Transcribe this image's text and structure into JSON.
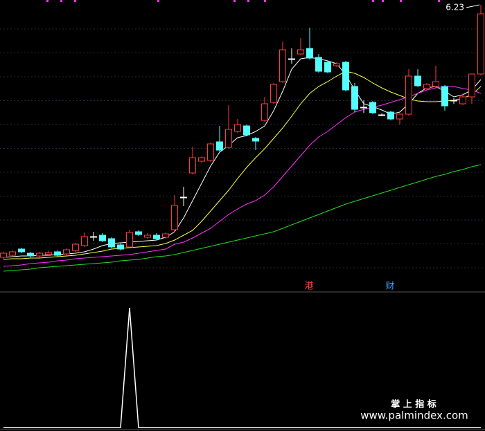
{
  "chart_data": [
    {
      "type": "candlestick",
      "ylim": [
        2.3,
        6.3
      ],
      "up_color": "#ff3c3c",
      "down_color": "#54ffff",
      "flat_color": "#ffffff",
      "open": [
        2.58,
        2.61,
        2.7,
        2.64,
        2.6,
        2.62,
        2.66,
        2.63,
        2.68,
        2.75,
        2.88,
        2.9,
        2.85,
        2.76,
        2.73,
        2.95,
        2.87,
        2.9,
        2.87,
        2.98,
        3.45,
        3.8,
        3.97,
        3.98,
        4.25,
        4.17,
        4.4,
        4.48,
        4.3,
        4.56,
        4.82,
        5.12,
        5.45,
        5.52,
        5.6,
        5.47,
        5.4,
        5.35,
        5.4,
        5.05,
        4.75,
        4.82,
        4.64,
        4.68,
        4.58,
        4.65,
        5.2,
        5.02,
        5.05,
        5.05,
        4.85,
        4.8,
        4.9,
        5.23
      ],
      "high": [
        2.66,
        2.68,
        2.72,
        2.66,
        2.66,
        2.67,
        2.68,
        2.71,
        2.79,
        2.94,
        2.95,
        2.93,
        2.87,
        2.78,
        2.98,
        2.97,
        2.93,
        2.93,
        2.94,
        3.48,
        3.6,
        4.18,
        4.04,
        4.24,
        4.48,
        4.78,
        4.58,
        4.5,
        4.32,
        4.9,
        5.1,
        5.7,
        5.6,
        5.75,
        5.9,
        5.52,
        5.42,
        5.4,
        5.42,
        5.1,
        4.85,
        4.84,
        4.66,
        4.7,
        4.66,
        5.3,
        5.3,
        5.1,
        5.35,
        5.07,
        4.88,
        4.95,
        5.23,
        6.23
      ],
      "low": [
        2.56,
        2.59,
        2.64,
        2.58,
        2.58,
        2.6,
        2.59,
        2.61,
        2.66,
        2.73,
        2.82,
        2.8,
        2.71,
        2.68,
        2.71,
        2.89,
        2.85,
        2.83,
        2.85,
        2.96,
        3.32,
        3.78,
        3.95,
        3.96,
        4.11,
        4.15,
        4.38,
        4.33,
        4.13,
        4.54,
        4.8,
        5.1,
        5.38,
        5.5,
        5.44,
        5.25,
        5.24,
        5.33,
        4.98,
        4.68,
        4.67,
        4.65,
        4.62,
        4.56,
        4.5,
        4.63,
        5.04,
        5.0,
        5.03,
        4.7,
        4.8,
        4.78,
        4.8,
        5.21
      ],
      "close": [
        2.64,
        2.66,
        2.66,
        2.6,
        2.64,
        2.65,
        2.61,
        2.69,
        2.77,
        2.88,
        2.88,
        2.82,
        2.73,
        2.7,
        2.94,
        2.91,
        2.9,
        2.85,
        2.92,
        3.33,
        3.45,
        4.02,
        4.02,
        4.22,
        4.13,
        4.43,
        4.5,
        4.35,
        4.26,
        4.8,
        5.08,
        5.58,
        5.45,
        5.58,
        5.46,
        5.27,
        5.26,
        5.38,
        5.0,
        4.72,
        4.75,
        4.67,
        4.64,
        4.58,
        4.65,
        5.2,
        5.06,
        5.08,
        5.12,
        4.77,
        4.85,
        4.9,
        5.23,
        6.1
      ],
      "series": [
        {
          "color": "#ffffff",
          "values": [
            2.58,
            2.59,
            2.6,
            2.6,
            2.61,
            2.61,
            2.62,
            2.63,
            2.64,
            2.66,
            2.7,
            2.75,
            2.78,
            2.79,
            2.8,
            2.81,
            2.82,
            2.83,
            2.87,
            2.95,
            3.15,
            3.4,
            3.65,
            3.9,
            4.1,
            4.2,
            4.31,
            4.34,
            4.4,
            4.48,
            4.7,
            4.98,
            5.3,
            5.45,
            5.47,
            5.45,
            5.42,
            5.38,
            5.22,
            5.0,
            4.8,
            4.76,
            4.71,
            4.65,
            4.68,
            4.8,
            4.95,
            5.03,
            5.05,
            4.98,
            4.9,
            4.93,
            5.0,
            5.15
          ]
        },
        {
          "color": "#ffff44",
          "values": [
            2.55,
            2.56,
            2.56,
            2.57,
            2.57,
            2.58,
            2.59,
            2.6,
            2.61,
            2.63,
            2.65,
            2.67,
            2.7,
            2.71,
            2.72,
            2.73,
            2.74,
            2.75,
            2.78,
            2.83,
            2.9,
            2.97,
            3.1,
            3.25,
            3.4,
            3.55,
            3.72,
            3.88,
            4.02,
            4.15,
            4.3,
            4.45,
            4.62,
            4.8,
            4.95,
            5.05,
            5.12,
            5.2,
            5.27,
            5.24,
            5.18,
            5.1,
            5.03,
            4.97,
            4.92,
            4.87,
            4.84,
            4.83,
            4.83,
            4.84,
            4.85,
            4.88,
            4.93,
            5.05
          ]
        },
        {
          "color": "#ff33ff",
          "values": [
            2.45,
            2.46,
            2.47,
            2.49,
            2.5,
            2.51,
            2.53,
            2.54,
            2.56,
            2.57,
            2.58,
            2.59,
            2.6,
            2.61,
            2.62,
            2.64,
            2.66,
            2.68,
            2.7,
            2.77,
            2.8,
            2.86,
            2.93,
            3.0,
            3.1,
            3.2,
            3.28,
            3.35,
            3.4,
            3.48,
            3.6,
            3.75,
            3.9,
            4.05,
            4.2,
            4.32,
            4.4,
            4.5,
            4.6,
            4.68,
            4.72,
            4.75,
            4.78,
            4.82,
            4.86,
            4.9,
            4.95,
            5.0,
            5.03,
            5.05,
            5.05,
            5.02,
            5.0,
            4.95
          ]
        },
        {
          "color": "#22dd22",
          "values": [
            2.38,
            2.39,
            2.4,
            2.41,
            2.43,
            2.44,
            2.45,
            2.46,
            2.47,
            2.48,
            2.49,
            2.5,
            2.51,
            2.53,
            2.54,
            2.55,
            2.57,
            2.59,
            2.6,
            2.62,
            2.65,
            2.68,
            2.71,
            2.74,
            2.77,
            2.8,
            2.83,
            2.86,
            2.89,
            2.92,
            2.95,
            3.0,
            3.05,
            3.1,
            3.15,
            3.2,
            3.25,
            3.3,
            3.35,
            3.39,
            3.43,
            3.47,
            3.51,
            3.55,
            3.59,
            3.63,
            3.67,
            3.71,
            3.75,
            3.78,
            3.82,
            3.85,
            3.89,
            3.92
          ]
        }
      ],
      "annotations": [
        {
          "text": "6.23"
        }
      ],
      "signals": [
        {
          "text": "港",
          "color": "#ff4040"
        },
        {
          "text": "财",
          "color": "#40a0ff"
        }
      ]
    },
    {
      "type": "line",
      "ylim": [
        0,
        1
      ],
      "color": "#ffffff",
      "values": [
        0,
        0,
        0,
        0,
        0,
        0,
        0,
        0,
        0,
        0,
        0,
        0,
        0,
        0,
        1,
        0,
        0,
        0,
        0,
        0,
        0,
        0,
        0,
        0,
        0,
        0,
        0,
        0,
        0,
        0,
        0,
        0,
        0,
        0,
        0,
        0,
        0,
        0,
        0,
        0,
        0,
        0,
        0,
        0,
        0,
        0,
        0,
        0,
        0,
        0,
        0,
        0,
        0,
        0
      ]
    }
  ],
  "watermark": {
    "title": "掌 上 指 标",
    "url": "www.palmindex.com"
  }
}
